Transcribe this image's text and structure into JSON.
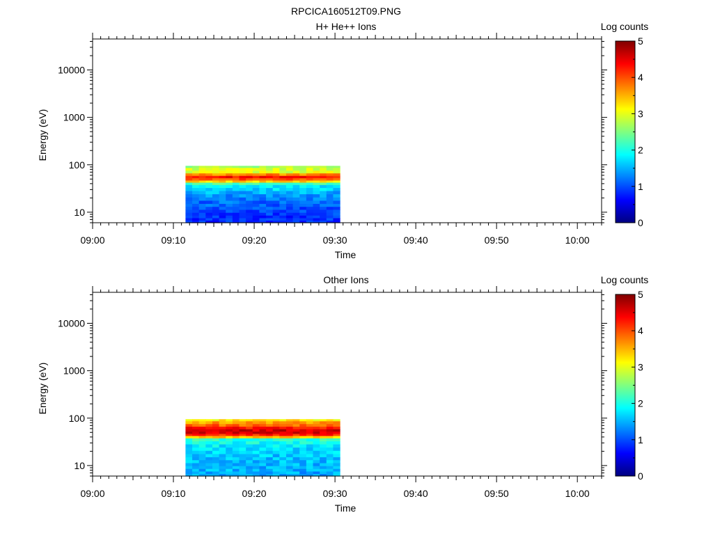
{
  "page_title": "RPCICA160512T09.PNG",
  "colors": {
    "axis": "#000000",
    "background": "#ffffff"
  },
  "chart_data": [
    {
      "type": "heatmap",
      "title": "H+ He++ Ions",
      "xlabel": "Time",
      "ylabel": "Energy (eV)",
      "y_scale": "log",
      "ylim": [
        6,
        45000
      ],
      "xlim": [
        "09:00",
        "10:03"
      ],
      "x_ticks": [
        "09:00",
        "09:10",
        "09:20",
        "09:30",
        "09:40",
        "09:50",
        "10:00"
      ],
      "y_ticks": [
        10,
        100,
        1000,
        10000
      ],
      "colorbar": {
        "label": "Log counts",
        "min": 0,
        "max": 5,
        "ticks": [
          0,
          1,
          2,
          3,
          4,
          5
        ],
        "colormap": "jet"
      },
      "data_time_range": [
        "09:11.5",
        "09:30.6"
      ],
      "data_energy_range": [
        6,
        95
      ],
      "energy_profile": [
        {
          "energy_eV": 92,
          "log_counts": 2.7
        },
        {
          "energy_eV": 80,
          "log_counts": 2.9
        },
        {
          "energy_eV": 70,
          "log_counts": 3.0
        },
        {
          "energy_eV": 62,
          "log_counts": 3.7
        },
        {
          "energy_eV": 55,
          "log_counts": 4.3
        },
        {
          "energy_eV": 49,
          "log_counts": 4.0
        },
        {
          "energy_eV": 44,
          "log_counts": 3.3
        },
        {
          "energy_eV": 40,
          "log_counts": 2.2
        },
        {
          "energy_eV": 35,
          "log_counts": 1.8
        },
        {
          "energy_eV": 30,
          "log_counts": 1.7
        },
        {
          "energy_eV": 26,
          "log_counts": 1.5
        },
        {
          "energy_eV": 22,
          "log_counts": 1.35
        },
        {
          "energy_eV": 19,
          "log_counts": 1.25
        },
        {
          "energy_eV": 16,
          "log_counts": 1.15
        },
        {
          "energy_eV": 14,
          "log_counts": 1.1
        },
        {
          "energy_eV": 12,
          "log_counts": 1.0
        },
        {
          "energy_eV": 10.5,
          "log_counts": 0.95
        },
        {
          "energy_eV": 9,
          "log_counts": 0.9
        },
        {
          "energy_eV": 8,
          "log_counts": 0.85
        },
        {
          "energy_eV": 7,
          "log_counts": 0.85
        },
        {
          "energy_eV": 6.3,
          "log_counts": 0.8
        }
      ],
      "grid": false
    },
    {
      "type": "heatmap",
      "title": "Other Ions",
      "xlabel": "Time",
      "ylabel": "Energy (eV)",
      "y_scale": "log",
      "ylim": [
        6,
        45000
      ],
      "xlim": [
        "09:00",
        "10:03"
      ],
      "x_ticks": [
        "09:00",
        "09:10",
        "09:20",
        "09:30",
        "09:40",
        "09:50",
        "10:00"
      ],
      "y_ticks": [
        10,
        100,
        1000,
        10000
      ],
      "colorbar": {
        "label": "Log counts",
        "min": 0,
        "max": 5,
        "ticks": [
          0,
          1,
          2,
          3,
          4,
          5
        ],
        "colormap": "jet"
      },
      "data_time_range": [
        "09:11.5",
        "09:30.6"
      ],
      "data_energy_range": [
        6,
        95
      ],
      "energy_profile": [
        {
          "energy_eV": 92,
          "log_counts": 3.2
        },
        {
          "energy_eV": 80,
          "log_counts": 3.6
        },
        {
          "energy_eV": 70,
          "log_counts": 3.9
        },
        {
          "energy_eV": 62,
          "log_counts": 4.3
        },
        {
          "energy_eV": 55,
          "log_counts": 4.6
        },
        {
          "energy_eV": 49,
          "log_counts": 4.55
        },
        {
          "energy_eV": 44,
          "log_counts": 4.2
        },
        {
          "energy_eV": 40,
          "log_counts": 3.4
        },
        {
          "energy_eV": 35,
          "log_counts": 2.1
        },
        {
          "energy_eV": 30,
          "log_counts": 1.9
        },
        {
          "energy_eV": 26,
          "log_counts": 1.8
        },
        {
          "energy_eV": 22,
          "log_counts": 1.7
        },
        {
          "energy_eV": 19,
          "log_counts": 1.65
        },
        {
          "energy_eV": 16,
          "log_counts": 1.6
        },
        {
          "energy_eV": 14,
          "log_counts": 1.55
        },
        {
          "energy_eV": 12,
          "log_counts": 1.55
        },
        {
          "energy_eV": 10.5,
          "log_counts": 1.5
        },
        {
          "energy_eV": 9,
          "log_counts": 1.5
        },
        {
          "energy_eV": 8,
          "log_counts": 1.5
        },
        {
          "energy_eV": 7,
          "log_counts": 1.45
        },
        {
          "energy_eV": 6.3,
          "log_counts": 1.45
        }
      ],
      "grid": false
    }
  ]
}
